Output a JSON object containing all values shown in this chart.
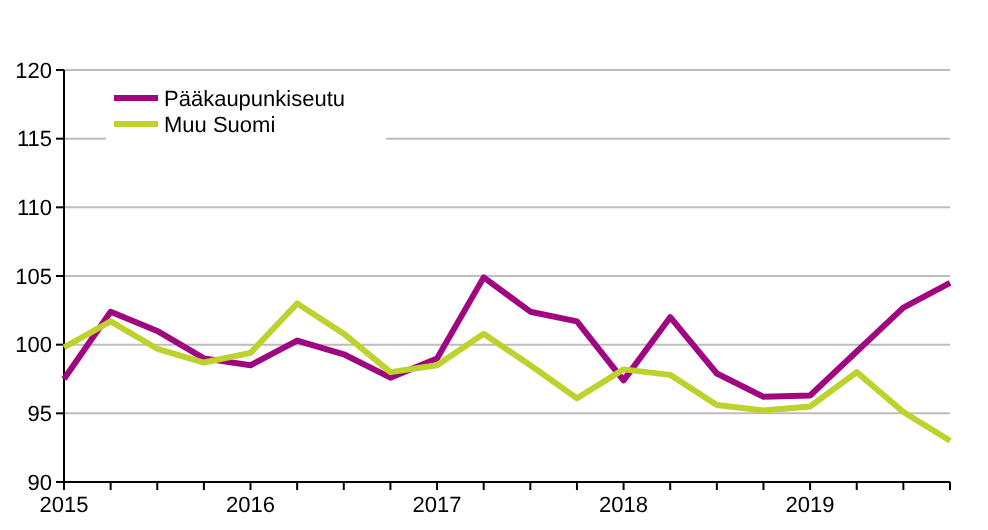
{
  "chart_data": {
    "type": "line",
    "categories": [
      "2015",
      null,
      null,
      null,
      "2016",
      null,
      null,
      null,
      "2017",
      null,
      null,
      null,
      "2018",
      null,
      null,
      null,
      "2019",
      null,
      null,
      null
    ],
    "series": [
      {
        "name": "Pääkaupunkiseutu",
        "color": "#a0067f",
        "values": [
          97.5,
          102.4,
          101,
          99,
          98.5,
          100.3,
          99.3,
          97.6,
          99,
          104.9,
          102.4,
          101.7,
          97.4,
          102,
          97.9,
          96.2,
          96.3,
          99.5,
          102.7,
          104.5
        ]
      },
      {
        "name": "Muu Suomi",
        "color": "#bed22d",
        "values": [
          99.8,
          101.7,
          99.7,
          98.7,
          99.4,
          103,
          100.8,
          98,
          98.5,
          100.8,
          98.5,
          96.1,
          98.2,
          97.8,
          95.6,
          95.2,
          95.5,
          98,
          95.1,
          93
        ]
      }
    ],
    "ylim": [
      90,
      120
    ],
    "yticks": [
      90,
      95,
      100,
      105,
      110,
      115,
      120
    ],
    "grid": "y",
    "legend": "top left"
  }
}
